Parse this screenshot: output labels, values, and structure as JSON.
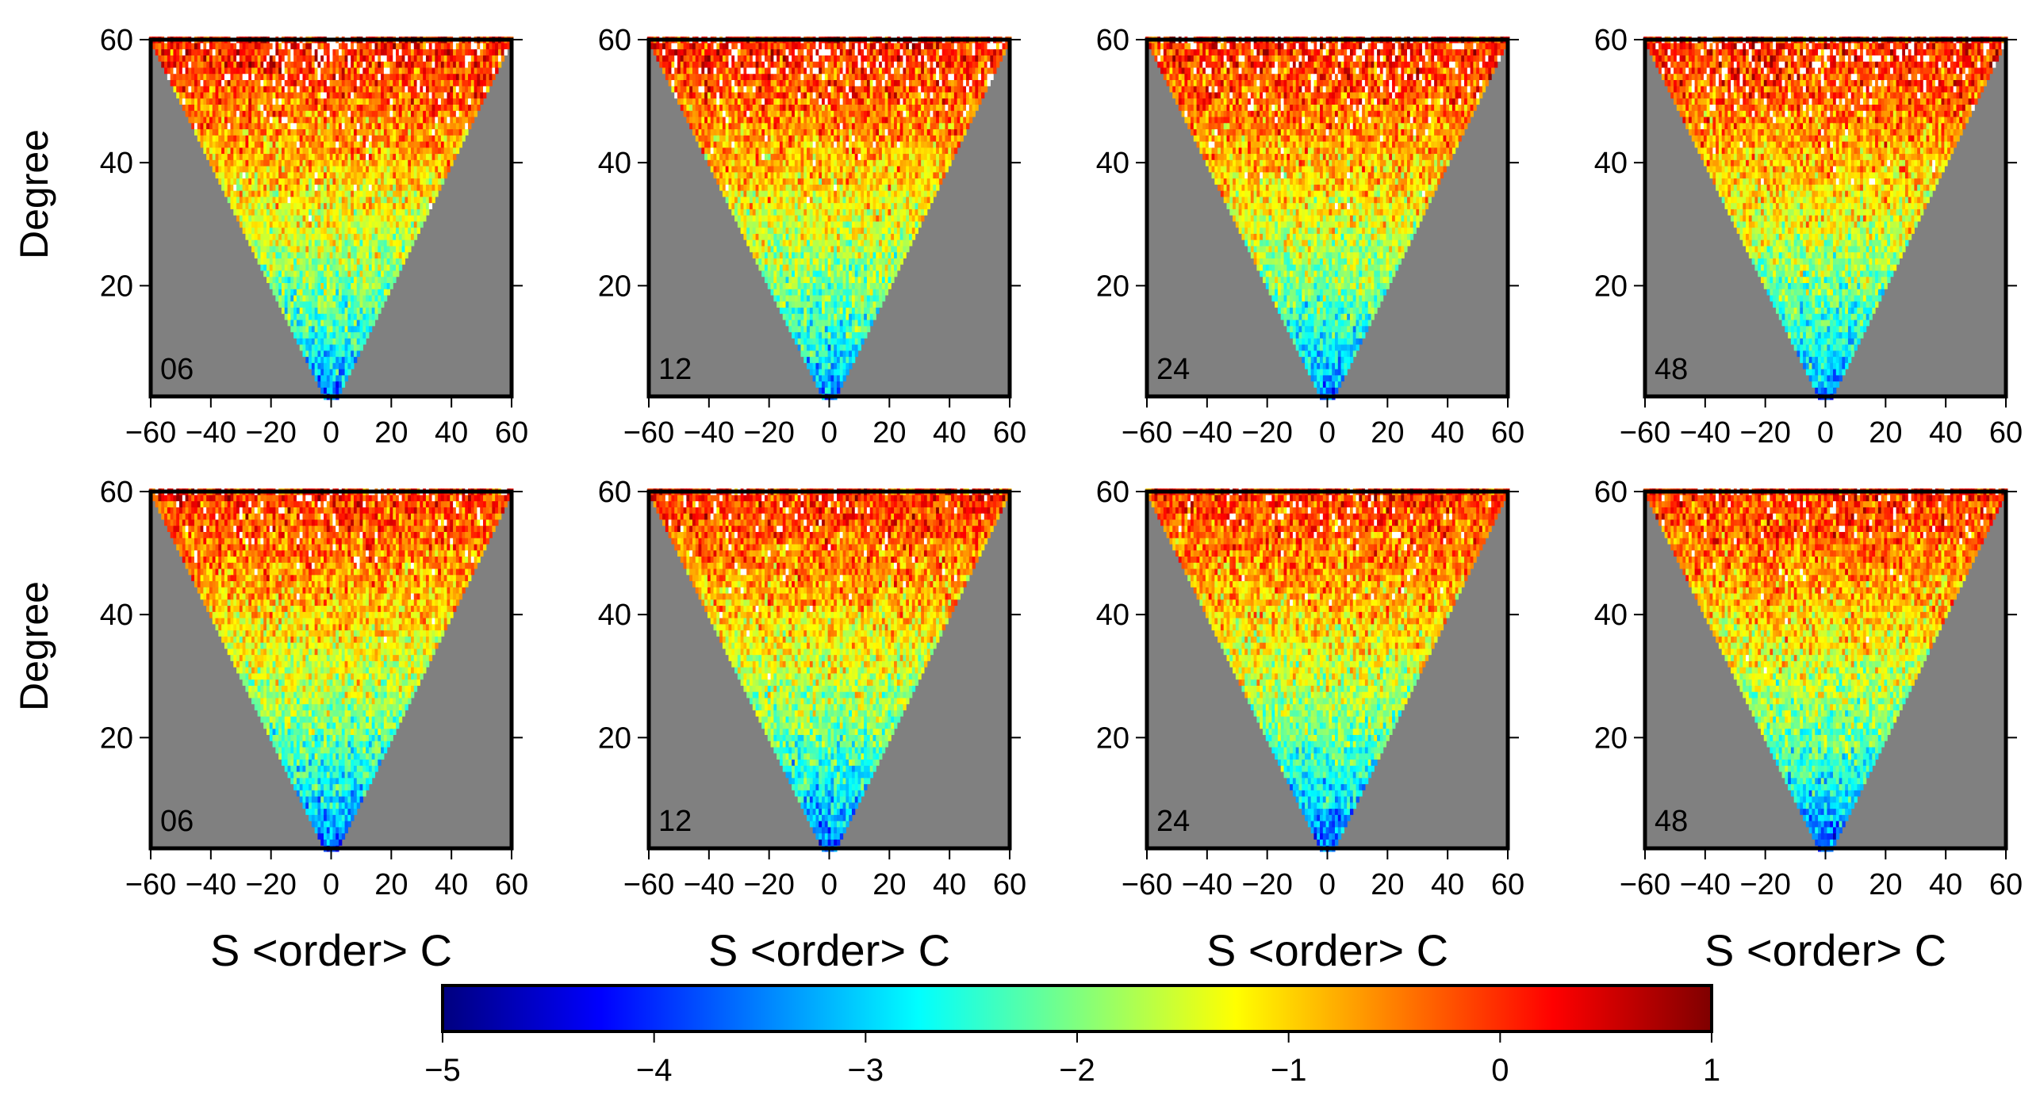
{
  "chart_data": {
    "type": "heatmap",
    "description_of_cells": "triangular coefficient maps: cells defined where |order| <= degree; value is log10 magnitude",
    "panels": [
      {
        "row": 1,
        "label": "06",
        "xlabel": "",
        "ylabel": "Degree"
      },
      {
        "row": 1,
        "label": "12",
        "xlabel": "",
        "ylabel": ""
      },
      {
        "row": 1,
        "label": "24",
        "xlabel": "",
        "ylabel": ""
      },
      {
        "row": 1,
        "label": "48",
        "xlabel": "",
        "ylabel": ""
      },
      {
        "row": 2,
        "label": "06",
        "xlabel": "S <order> C",
        "ylabel": "Degree"
      },
      {
        "row": 2,
        "label": "12",
        "xlabel": "S <order> C",
        "ylabel": ""
      },
      {
        "row": 2,
        "label": "24",
        "xlabel": "S <order> C",
        "ylabel": ""
      },
      {
        "row": 2,
        "label": "48",
        "xlabel": "S <order> C",
        "ylabel": ""
      }
    ],
    "xlim": [
      -60,
      60
    ],
    "ylim": [
      2,
      60
    ],
    "x_ticks": [
      -60,
      -40,
      -20,
      0,
      20,
      40,
      60
    ],
    "x_tick_labels": [
      "−60",
      "−40",
      "−20",
      "0",
      "20",
      "40",
      "60"
    ],
    "y_ticks": [
      20,
      40,
      60
    ],
    "y_tick_labels": [
      "20",
      "40",
      "60"
    ],
    "background_color": "#808080",
    "colorbar": {
      "min": -5,
      "max": 1,
      "ticks": [
        -5,
        -4,
        -3,
        -2,
        -1,
        0,
        1
      ],
      "tick_labels": [
        "−5",
        "−4",
        "−3",
        "−2",
        "−1",
        "0",
        "1"
      ],
      "colormap": "jet",
      "colors": [
        "#00007f",
        "#0000ff",
        "#007fff",
        "#00ffff",
        "#7fff7f",
        "#ffff00",
        "#ff7f00",
        "#ff0000",
        "#7f0000"
      ]
    },
    "value_trend": {
      "row1": {
        "value_at_degree_2": -3.7,
        "value_at_degree_60": 0.1,
        "blank_fraction_at_top": 0.25
      },
      "row2": {
        "value_at_degree_2": -3.9,
        "value_at_degree_60": 0.0,
        "blank_fraction_at_top": 0.12
      }
    }
  }
}
